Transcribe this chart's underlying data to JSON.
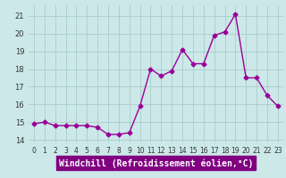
{
  "x": [
    0,
    1,
    2,
    3,
    4,
    5,
    6,
    7,
    8,
    9,
    10,
    11,
    12,
    13,
    14,
    15,
    16,
    17,
    18,
    19,
    20,
    21,
    22,
    23
  ],
  "y": [
    14.9,
    15.0,
    14.8,
    14.8,
    14.8,
    14.8,
    14.7,
    14.3,
    14.3,
    14.4,
    15.9,
    18.0,
    17.6,
    17.9,
    19.1,
    18.3,
    18.3,
    19.9,
    20.1,
    21.1,
    17.5,
    17.5,
    16.5,
    15.9
  ],
  "line_color": "#990099",
  "marker": "D",
  "markersize": 2.5,
  "linewidth": 1.0,
  "bg_color": "#cce8e8",
  "grid_color": "#aacccc",
  "xlabel": "Windchill (Refroidissement éolien,°C)",
  "xlabel_fontsize": 7,
  "xlabel_bg": "#800080",
  "xlabel_fg": "#ffffff",
  "yticks": [
    14,
    15,
    16,
    17,
    18,
    19,
    20,
    21
  ],
  "xticks": [
    0,
    1,
    2,
    3,
    4,
    5,
    6,
    7,
    8,
    9,
    10,
    11,
    12,
    13,
    14,
    15,
    16,
    17,
    18,
    19,
    20,
    21,
    22,
    23
  ],
  "xlim": [
    -0.5,
    23.5
  ],
  "ylim": [
    13.85,
    21.6
  ],
  "tick_fontsize": 5.5,
  "ytick_fontsize": 6.0
}
